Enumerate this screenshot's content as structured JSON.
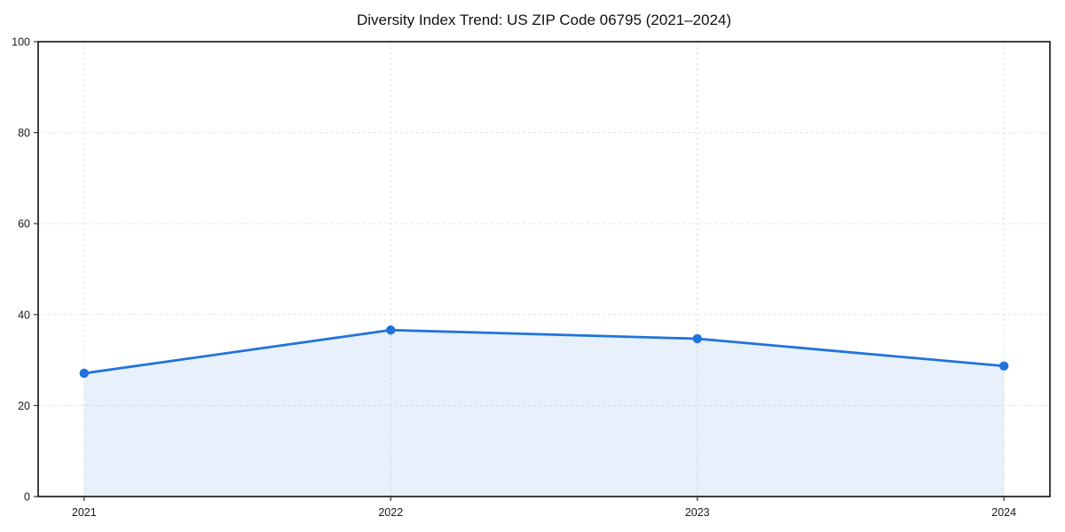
{
  "chart_data": {
    "type": "area",
    "title": "Diversity Index Trend: US ZIP Code 06795 (2021–2024)",
    "categories": [
      "2021",
      "2022",
      "2023",
      "2024"
    ],
    "series": [
      {
        "name": "Diversity Index",
        "values": [
          27.1,
          36.6,
          34.7,
          28.7
        ]
      }
    ],
    "xlabel": "",
    "ylabel": "",
    "ylim": [
      0,
      100
    ],
    "yticks": [
      0,
      20,
      40,
      60,
      80,
      100
    ],
    "grid": true,
    "legend": "none",
    "colors": {
      "line": "#2173dc",
      "marker": "#2173dc",
      "fill": "rgba(33,115,220,0.10)",
      "grid": "#e2e2e2",
      "spine": "#111111",
      "tick": "#333333",
      "tick_label": "#1a1a1a"
    }
  }
}
